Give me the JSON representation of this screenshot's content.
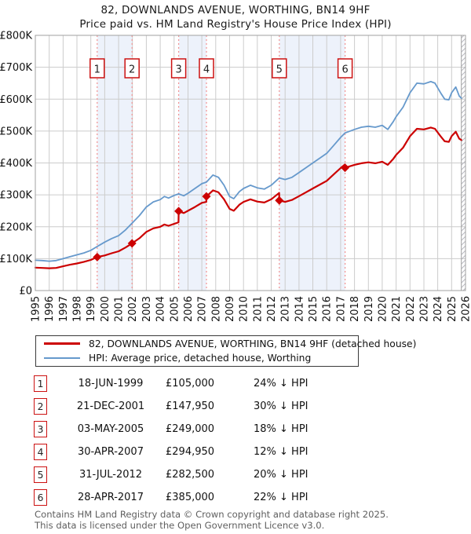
{
  "title": "82, DOWNLANDS AVENUE, WORTHING, BN14 9HF",
  "subtitle": "Price paid vs. HM Land Registry's House Price Index (HPI)",
  "colors": {
    "property_line": "#cc0000",
    "hpi_line": "#6699cc",
    "sale_dashed_line": "#f29191",
    "sale_band_fill": "#edf2fb",
    "grid": "#cccccc",
    "plot_border": "#a0a0a0",
    "hatch": "#b8b8c0",
    "badge_border": "#cc1111",
    "footer_text": "#5f5f5f"
  },
  "chart_data": {
    "type": "line",
    "x_range": [
      1995,
      2026
    ],
    "ylim": [
      0,
      800000
    ],
    "y_tick_labels": [
      "£0",
      "£100K",
      "£200K",
      "£300K",
      "£400K",
      "£500K",
      "£600K",
      "£700K",
      "£800K"
    ],
    "x_tick_years": [
      1995,
      1996,
      1997,
      1998,
      1999,
      2000,
      2001,
      2002,
      2003,
      2004,
      2005,
      2006,
      2007,
      2008,
      2009,
      2010,
      2011,
      2012,
      2013,
      2014,
      2015,
      2016,
      2017,
      2018,
      2019,
      2020,
      2021,
      2022,
      2023,
      2024,
      2025,
      2026
    ],
    "grid": true,
    "legend_position": "below",
    "future_hatch_start": 2025.7,
    "sale_bands": [
      [
        1999.46,
        2001.97
      ],
      [
        2005.33,
        2007.33
      ],
      [
        2012.58,
        2017.32
      ]
    ],
    "series": [
      {
        "name": "HPI: Average price, detached house, Worthing",
        "color": "#6699cc",
        "width": 1.8,
        "points": [
          [
            1995.0,
            95000
          ],
          [
            1995.5,
            94000
          ],
          [
            1996.0,
            92000
          ],
          [
            1996.5,
            94000
          ],
          [
            1997.0,
            100000
          ],
          [
            1997.5,
            106000
          ],
          [
            1998.0,
            112000
          ],
          [
            1998.5,
            118000
          ],
          [
            1999.0,
            126000
          ],
          [
            1999.46,
            138000
          ],
          [
            2000.0,
            152000
          ],
          [
            2000.5,
            163000
          ],
          [
            2001.0,
            172000
          ],
          [
            2001.5,
            190000
          ],
          [
            2001.97,
            211000
          ],
          [
            2002.5,
            235000
          ],
          [
            2003.0,
            262000
          ],
          [
            2003.5,
            278000
          ],
          [
            2004.0,
            285000
          ],
          [
            2004.3,
            295000
          ],
          [
            2004.6,
            290000
          ],
          [
            2005.0,
            298000
          ],
          [
            2005.33,
            303000
          ],
          [
            2005.7,
            297000
          ],
          [
            2006.0,
            305000
          ],
          [
            2006.5,
            320000
          ],
          [
            2007.0,
            335000
          ],
          [
            2007.33,
            340000
          ],
          [
            2007.8,
            362000
          ],
          [
            2008.2,
            355000
          ],
          [
            2008.6,
            330000
          ],
          [
            2009.0,
            295000
          ],
          [
            2009.3,
            288000
          ],
          [
            2009.7,
            310000
          ],
          [
            2010.0,
            320000
          ],
          [
            2010.5,
            330000
          ],
          [
            2011.0,
            322000
          ],
          [
            2011.5,
            318000
          ],
          [
            2012.0,
            330000
          ],
          [
            2012.58,
            353000
          ],
          [
            2013.0,
            348000
          ],
          [
            2013.5,
            355000
          ],
          [
            2014.0,
            370000
          ],
          [
            2014.5,
            385000
          ],
          [
            2015.0,
            400000
          ],
          [
            2015.5,
            415000
          ],
          [
            2016.0,
            430000
          ],
          [
            2016.5,
            455000
          ],
          [
            2017.0,
            480000
          ],
          [
            2017.32,
            494000
          ],
          [
            2018.0,
            505000
          ],
          [
            2018.5,
            512000
          ],
          [
            2019.0,
            515000
          ],
          [
            2019.5,
            512000
          ],
          [
            2020.0,
            518000
          ],
          [
            2020.4,
            505000
          ],
          [
            2020.8,
            530000
          ],
          [
            2021.0,
            545000
          ],
          [
            2021.5,
            575000
          ],
          [
            2022.0,
            620000
          ],
          [
            2022.5,
            650000
          ],
          [
            2023.0,
            648000
          ],
          [
            2023.5,
            655000
          ],
          [
            2023.8,
            650000
          ],
          [
            2024.2,
            620000
          ],
          [
            2024.5,
            600000
          ],
          [
            2024.8,
            598000
          ],
          [
            2025.0,
            620000
          ],
          [
            2025.3,
            638000
          ],
          [
            2025.55,
            610000
          ],
          [
            2025.7,
            603000
          ]
        ]
      },
      {
        "name": "82, DOWNLANDS AVENUE, WORTHING, BN14 9HF (detached house)",
        "color": "#cc0000",
        "width": 2.2,
        "points": [
          [
            1995.0,
            72000
          ],
          [
            1995.5,
            71000
          ],
          [
            1996.0,
            70000
          ],
          [
            1996.5,
            71000
          ],
          [
            1997.0,
            76000
          ],
          [
            1997.5,
            81000
          ],
          [
            1998.0,
            85000
          ],
          [
            1998.5,
            90000
          ],
          [
            1999.0,
            96000
          ],
          [
            1999.46,
            105000
          ],
          [
            2000.0,
            110000
          ],
          [
            2000.5,
            117000
          ],
          [
            2001.0,
            123000
          ],
          [
            2001.5,
            135000
          ],
          [
            2001.97,
            147950
          ],
          [
            2002.5,
            164000
          ],
          [
            2003.0,
            184000
          ],
          [
            2003.5,
            195000
          ],
          [
            2004.0,
            200000
          ],
          [
            2004.3,
            207000
          ],
          [
            2004.6,
            203000
          ],
          [
            2005.0,
            209000
          ],
          [
            2005.32,
            214000
          ],
          [
            2005.33,
            249000
          ],
          [
            2005.7,
            243000
          ],
          [
            2006.0,
            250000
          ],
          [
            2006.5,
            262000
          ],
          [
            2007.0,
            275000
          ],
          [
            2007.32,
            278000
          ],
          [
            2007.33,
            294950
          ],
          [
            2007.8,
            314000
          ],
          [
            2008.2,
            308000
          ],
          [
            2008.6,
            286000
          ],
          [
            2009.0,
            256000
          ],
          [
            2009.3,
            250000
          ],
          [
            2009.7,
            269000
          ],
          [
            2010.0,
            278000
          ],
          [
            2010.5,
            286000
          ],
          [
            2011.0,
            279000
          ],
          [
            2011.5,
            276000
          ],
          [
            2012.0,
            286000
          ],
          [
            2012.57,
            306000
          ],
          [
            2012.58,
            282500
          ],
          [
            2013.0,
            278000
          ],
          [
            2013.5,
            284000
          ],
          [
            2014.0,
            296000
          ],
          [
            2014.5,
            308000
          ],
          [
            2015.0,
            320000
          ],
          [
            2015.5,
            332000
          ],
          [
            2016.0,
            344000
          ],
          [
            2016.5,
            364000
          ],
          [
            2017.0,
            384000
          ],
          [
            2017.31,
            395000
          ],
          [
            2017.32,
            385000
          ],
          [
            2018.0,
            394000
          ],
          [
            2018.5,
            399000
          ],
          [
            2019.0,
            402000
          ],
          [
            2019.5,
            399000
          ],
          [
            2020.0,
            404000
          ],
          [
            2020.4,
            394000
          ],
          [
            2020.8,
            413000
          ],
          [
            2021.0,
            425000
          ],
          [
            2021.5,
            448000
          ],
          [
            2022.0,
            484000
          ],
          [
            2022.5,
            507000
          ],
          [
            2023.0,
            505000
          ],
          [
            2023.5,
            511000
          ],
          [
            2023.8,
            507000
          ],
          [
            2024.2,
            484000
          ],
          [
            2024.5,
            468000
          ],
          [
            2024.8,
            466000
          ],
          [
            2025.0,
            484000
          ],
          [
            2025.3,
            498000
          ],
          [
            2025.55,
            476000
          ],
          [
            2025.7,
            472000
          ]
        ]
      }
    ]
  },
  "legend": {
    "entries": [
      {
        "label": "82, DOWNLANDS AVENUE, WORTHING, BN14 9HF (detached house)",
        "color": "#cc0000"
      },
      {
        "label": "HPI: Average price, detached house, Worthing",
        "color": "#6699cc"
      }
    ]
  },
  "sales": [
    {
      "num": "1",
      "year": 1999.46,
      "price": 105000,
      "date": "18-JUN-1999",
      "price_label": "£105,000",
      "hpi_label": "24% ↓ HPI"
    },
    {
      "num": "2",
      "year": 2001.97,
      "price": 147950,
      "date": "21-DEC-2001",
      "price_label": "£147,950",
      "hpi_label": "30% ↓ HPI"
    },
    {
      "num": "3",
      "year": 2005.33,
      "price": 249000,
      "date": "03-MAY-2005",
      "price_label": "£249,000",
      "hpi_label": "18% ↓ HPI"
    },
    {
      "num": "4",
      "year": 2007.33,
      "price": 294950,
      "date": "30-APR-2007",
      "price_label": "£294,950",
      "hpi_label": "12% ↓ HPI"
    },
    {
      "num": "5",
      "year": 2012.58,
      "price": 282500,
      "date": "31-JUL-2012",
      "price_label": "£282,500",
      "hpi_label": "20% ↓ HPI"
    },
    {
      "num": "6",
      "year": 2017.32,
      "price": 385000,
      "date": "28-APR-2017",
      "price_label": "£385,000",
      "hpi_label": "22% ↓ HPI"
    }
  ],
  "footer": {
    "line1": "Contains HM Land Registry data © Crown copyright and database right 2025.",
    "line2": "This data is licensed under the Open Government Licence v3.0."
  }
}
